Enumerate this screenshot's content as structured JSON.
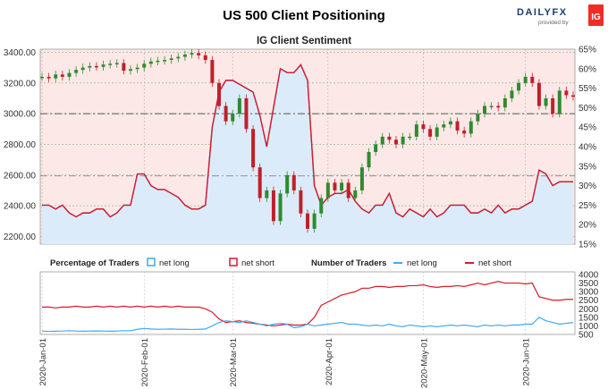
{
  "header": {
    "title": "US 500 Client Positioning",
    "brand": "DAILYFX",
    "brand_sub": "provided by",
    "brand_badge": "IG"
  },
  "chart_data": {
    "type": "line",
    "title": "IG Client Sentiment",
    "colors": {
      "net_long": "#3fa9f5",
      "net_short": "#d7192a",
      "price_up": "#2e8b2e",
      "price_down": "#c0202a"
    },
    "price_axis": {
      "ticks": [
        "3400.00",
        "3200.00",
        "3000.00",
        "2800.00",
        "2600.00",
        "2400.00",
        "2200.00"
      ],
      "range": [
        2150,
        3420
      ]
    },
    "percent_axis": {
      "ticks": [
        "65%",
        "60%",
        "55%",
        "50%",
        "45%",
        "40%",
        "35%",
        "30%",
        "25%",
        "20%",
        "15%"
      ],
      "range": [
        15,
        65
      ]
    },
    "reference_lines": {
      "price": 3000,
      "percent": 32.5
    },
    "price_series": [
      3240,
      3230,
      3255,
      3240,
      3265,
      3285,
      3300,
      3310,
      3305,
      3320,
      3325,
      3330,
      3280,
      3290,
      3300,
      3325,
      3340,
      3345,
      3350,
      3360,
      3370,
      3385,
      3395,
      3380,
      3350,
      3200,
      3050,
      2950,
      3000,
      3100,
      2900,
      2650,
      2450,
      2500,
      2300,
      2480,
      2600,
      2500,
      2350,
      2250,
      2350,
      2450,
      2550,
      2500,
      2550,
      2450,
      2500,
      2650,
      2750,
      2800,
      2850,
      2830,
      2800,
      2850,
      2850,
      2930,
      2900,
      2850,
      2910,
      2930,
      2950,
      2890,
      2870,
      2950,
      3000,
      3050,
      3050,
      3040,
      3100,
      3150,
      3200,
      3240,
      3200,
      3050,
      3100,
      3000,
      3150,
      3120,
      3110
    ],
    "sentiment": {
      "net_long_pct": [
        25,
        25,
        24,
        25,
        23,
        22,
        23,
        23,
        24,
        24,
        22,
        23,
        25,
        25,
        33,
        33,
        30,
        29,
        29,
        28,
        27,
        25,
        24,
        24,
        25,
        45,
        54,
        57,
        57,
        56,
        55,
        54,
        48,
        40,
        50,
        60,
        59,
        59,
        61,
        57,
        30,
        25,
        27,
        28,
        28,
        29,
        26,
        24,
        23,
        25,
        25,
        28,
        23,
        22,
        24,
        23,
        22,
        24,
        22,
        23,
        25,
        25,
        25,
        23,
        23,
        24,
        23,
        25,
        23,
        24,
        24,
        25,
        26,
        34,
        33,
        30,
        31,
        31,
        31
      ],
      "net_short_pct": [
        75,
        75,
        76,
        75,
        77,
        78,
        77,
        77,
        76,
        76,
        78,
        77,
        75,
        75,
        67,
        67,
        70,
        71,
        71,
        72,
        73,
        75,
        76,
        76,
        75,
        55,
        46,
        43,
        43,
        44,
        45,
        46,
        52,
        60,
        50,
        40,
        41,
        41,
        39,
        43,
        70,
        75,
        73,
        72,
        72,
        71,
        74,
        76,
        77,
        75,
        75,
        72,
        77,
        78,
        76,
        77,
        78,
        76,
        78,
        77,
        75,
        75,
        75,
        77,
        77,
        76,
        77,
        75,
        77,
        76,
        76,
        75,
        74,
        66,
        67,
        70,
        69,
        69,
        69
      ]
    },
    "bottom_panel": {
      "legend_pct_title": "Percentage of Traders",
      "legend_num_title": "Number of Traders",
      "net_long_label": "net long",
      "net_short_label": "net short",
      "count_ticks": [
        "4000",
        "3500",
        "3000",
        "2500",
        "2000",
        "1500",
        "1000",
        "500"
      ],
      "count_range": [
        500,
        4000
      ],
      "net_long_count": [
        700,
        680,
        690,
        700,
        720,
        700,
        690,
        700,
        710,
        700,
        690,
        700,
        720,
        720,
        800,
        850,
        820,
        800,
        810,
        820,
        800,
        800,
        790,
        800,
        820,
        1000,
        1200,
        1300,
        1250,
        1200,
        1300,
        1200,
        1100,
        1000,
        1100,
        1150,
        1100,
        900,
        950,
        1100,
        1000,
        1050,
        1100,
        1150,
        1200,
        1100,
        1100,
        1050,
        1000,
        1050,
        1000,
        1100,
        1000,
        950,
        1050,
        1000,
        950,
        1000,
        950,
        1000,
        1050,
        1000,
        1050,
        1000,
        950,
        1050,
        1000,
        1050,
        1000,
        1050,
        1050,
        1100,
        1100,
        1500,
        1300,
        1200,
        1100,
        1150,
        1200
      ],
      "net_short_count": [
        2100,
        2100,
        2050,
        2100,
        2100,
        2150,
        2100,
        2100,
        2150,
        2100,
        2150,
        2100,
        2150,
        2100,
        2150,
        2100,
        2150,
        2100,
        2150,
        2100,
        2150,
        2100,
        2100,
        2100,
        2000,
        1800,
        1400,
        1200,
        1250,
        1300,
        1200,
        1150,
        1100,
        1050,
        1000,
        1050,
        1100,
        1050,
        1050,
        1100,
        1500,
        2200,
        2400,
        2600,
        2800,
        2900,
        3000,
        3200,
        3200,
        3300,
        3300,
        3250,
        3300,
        3300,
        3350,
        3350,
        3400,
        3300,
        3250,
        3300,
        3300,
        3350,
        3300,
        3400,
        3500,
        3400,
        3500,
        3600,
        3500,
        3500,
        3500,
        3450,
        3500,
        2700,
        2600,
        2500,
        2500,
        2550,
        2550
      ]
    },
    "x_labels": [
      "2020-Jan-01",
      "2020-Feb-01",
      "2020-Mar-01",
      "2020-Apr-01",
      "2020-May-01",
      "2020-Jun-01"
    ],
    "x_label_positions": [
      0,
      15,
      28,
      42,
      56,
      71
    ],
    "n_points": 79
  }
}
